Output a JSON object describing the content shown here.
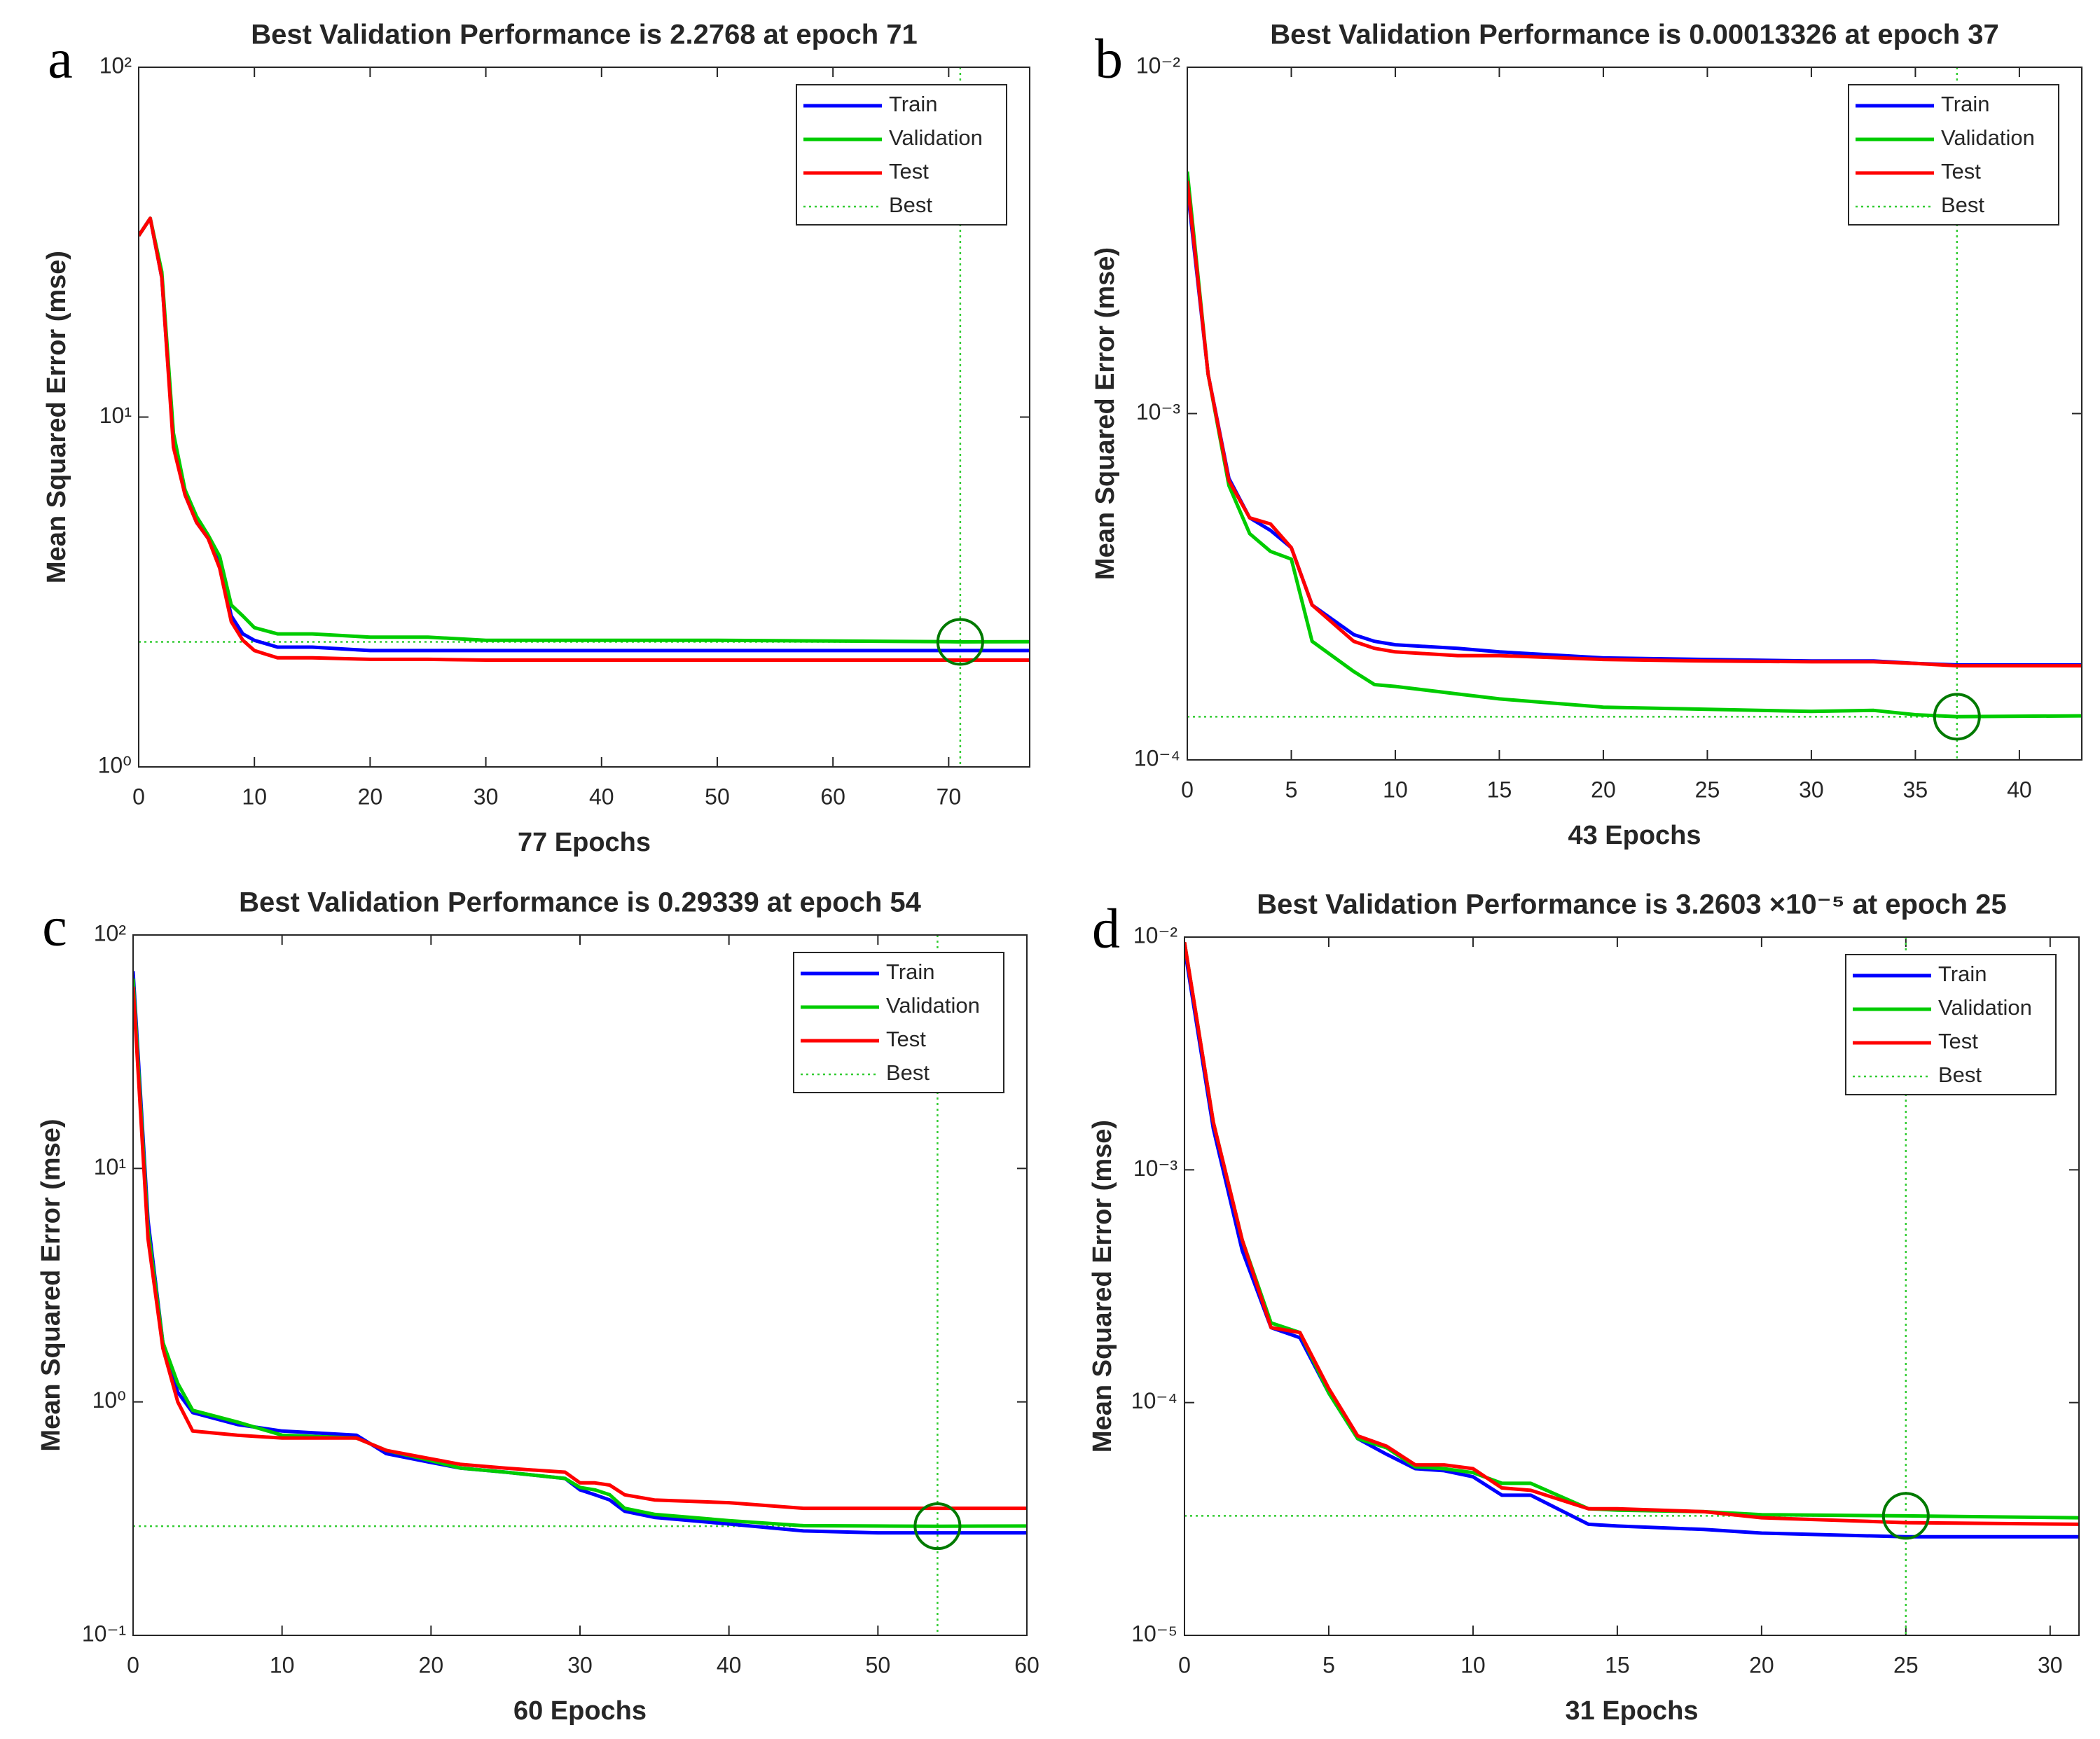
{
  "chart_data": [
    {
      "type": "line",
      "panel": "a",
      "title": "Best Validation Performance is 2.2768 at epoch 71",
      "xlabel": "77 Epochs",
      "ylabel": "Mean Squared Error  (mse)",
      "yscale": "log",
      "xlim": [
        0,
        77
      ],
      "xticks": [
        0,
        10,
        20,
        30,
        40,
        50,
        60,
        70
      ],
      "ylim": [
        1,
        100
      ],
      "yticks": [
        {
          "value": 1,
          "label": "10⁰"
        },
        {
          "value": 10,
          "label": "10¹"
        },
        {
          "value": 100,
          "label": "10²"
        }
      ],
      "x": [
        0,
        1,
        2,
        3,
        4,
        5,
        6,
        7,
        8,
        9,
        10,
        12,
        15,
        20,
        25,
        30,
        40,
        50,
        60,
        70,
        71,
        77
      ],
      "series": [
        {
          "name": "Train",
          "color": "#0000ff",
          "values": [
            33,
            37,
            25,
            8.5,
            6,
            5,
            4.5,
            3.8,
            2.7,
            2.4,
            2.3,
            2.2,
            2.2,
            2.15,
            2.15,
            2.15,
            2.15,
            2.15,
            2.15,
            2.15,
            2.15,
            2.15
          ]
        },
        {
          "name": "Validation",
          "color": "#00cc00",
          "values": [
            33,
            37,
            26,
            9,
            6.2,
            5.2,
            4.6,
            4.0,
            2.9,
            2.7,
            2.5,
            2.4,
            2.4,
            2.35,
            2.35,
            2.3,
            2.3,
            2.3,
            2.29,
            2.28,
            2.2768,
            2.28
          ]
        },
        {
          "name": "Test",
          "color": "#ff0000",
          "values": [
            33,
            37,
            25,
            8.2,
            6,
            5,
            4.5,
            3.7,
            2.6,
            2.3,
            2.15,
            2.05,
            2.05,
            2.03,
            2.03,
            2.02,
            2.02,
            2.02,
            2.02,
            2.02,
            2.02,
            2.02
          ]
        }
      ],
      "best": {
        "name": "Best",
        "color": "#33cc33",
        "x": 71,
        "y": 2.2768
      }
    },
    {
      "type": "line",
      "panel": "b",
      "title": "Best Validation Performance is 0.00013326 at epoch 37",
      "xlabel": "43 Epochs",
      "ylabel": "Mean Squared Error  (mse)",
      "yscale": "log",
      "xlim": [
        0,
        43
      ],
      "xticks": [
        0,
        5,
        10,
        15,
        20,
        25,
        30,
        35,
        40
      ],
      "ylim": [
        0.0001,
        0.01
      ],
      "yticks": [
        {
          "value": 0.0001,
          "label": "10⁻⁴"
        },
        {
          "value": 0.001,
          "label": "10⁻³"
        },
        {
          "value": 0.01,
          "label": "10⁻²"
        }
      ],
      "x": [
        0,
        1,
        2,
        3,
        4,
        5,
        6,
        8,
        9,
        10,
        13,
        15,
        20,
        25,
        30,
        33,
        35,
        37,
        43
      ],
      "series": [
        {
          "name": "Train",
          "color": "#0000ff",
          "values": [
            0.0045,
            0.0013,
            0.00065,
            0.0005,
            0.00046,
            0.00041,
            0.00028,
            0.00023,
            0.00022,
            0.000215,
            0.00021,
            0.000205,
            0.000197,
            0.000195,
            0.000193,
            0.000193,
            0.00019,
            0.000188,
            0.000188
          ]
        },
        {
          "name": "Validation",
          "color": "#00cc00",
          "values": [
            0.005,
            0.0013,
            0.00062,
            0.00045,
            0.0004,
            0.00038,
            0.00022,
            0.00018,
            0.000165,
            0.000163,
            0.000155,
            0.00015,
            0.000142,
            0.00014,
            0.000138,
            0.000139,
            0.000135,
            0.00013326,
            0.000134
          ]
        },
        {
          "name": "Test",
          "color": "#ff0000",
          "values": [
            0.0047,
            0.0013,
            0.00064,
            0.0005,
            0.00048,
            0.00041,
            0.00028,
            0.00022,
            0.00021,
            0.000205,
            0.0002,
            0.0002,
            0.000195,
            0.000193,
            0.000192,
            0.000192,
            0.00019,
            0.000187,
            0.000187
          ]
        }
      ],
      "best": {
        "name": "Best",
        "color": "#33cc33",
        "x": 37,
        "y": 0.00013326
      }
    },
    {
      "type": "line",
      "panel": "c",
      "title": "Best Validation Performance is 0.29339 at epoch 54",
      "xlabel": "60 Epochs",
      "ylabel": "Mean Squared Error  (mse)",
      "yscale": "log",
      "xlim": [
        0,
        60
      ],
      "xticks": [
        0,
        10,
        20,
        30,
        40,
        50,
        60
      ],
      "ylim": [
        0.1,
        100
      ],
      "yticks": [
        {
          "value": 0.1,
          "label": "10⁻¹"
        },
        {
          "value": 1,
          "label": "10⁰"
        },
        {
          "value": 10,
          "label": "10¹"
        },
        {
          "value": 100,
          "label": "10²"
        }
      ],
      "x": [
        0,
        1,
        2,
        3,
        4,
        7,
        10,
        15,
        17,
        20,
        22,
        25,
        29,
        30,
        31,
        32,
        33,
        35,
        40,
        45,
        50,
        54,
        60
      ],
      "series": [
        {
          "name": "Train",
          "color": "#0000ff",
          "values": [
            70,
            6,
            1.8,
            1.1,
            0.9,
            0.8,
            0.75,
            0.72,
            0.6,
            0.55,
            0.52,
            0.5,
            0.47,
            0.42,
            0.4,
            0.38,
            0.34,
            0.32,
            0.3,
            0.28,
            0.275,
            0.275,
            0.275
          ]
        },
        {
          "name": "Validation",
          "color": "#00cc00",
          "values": [
            65,
            5.5,
            1.8,
            1.2,
            0.92,
            0.82,
            0.72,
            0.7,
            0.62,
            0.56,
            0.52,
            0.5,
            0.47,
            0.43,
            0.42,
            0.4,
            0.35,
            0.33,
            0.31,
            0.295,
            0.294,
            0.29339,
            0.294
          ]
        },
        {
          "name": "Test",
          "color": "#ff0000",
          "values": [
            60,
            5,
            1.7,
            1.0,
            0.75,
            0.72,
            0.7,
            0.7,
            0.62,
            0.57,
            0.54,
            0.52,
            0.5,
            0.45,
            0.45,
            0.44,
            0.4,
            0.38,
            0.37,
            0.35,
            0.35,
            0.35,
            0.35
          ]
        }
      ],
      "best": {
        "name": "Best",
        "color": "#33cc33",
        "x": 54,
        "y": 0.29339
      }
    },
    {
      "type": "line",
      "panel": "d",
      "title": "Best Validation Performance is 3.2603 ×10⁻⁵ at epoch 25",
      "xlabel": "31 Epochs",
      "ylabel": "Mean Squared Error  (mse)",
      "yscale": "log",
      "xlim": [
        0,
        31
      ],
      "xticks": [
        0,
        5,
        10,
        15,
        20,
        25,
        30
      ],
      "ylim": [
        1e-05,
        0.01
      ],
      "yticks": [
        {
          "value": 1e-05,
          "label": "10⁻⁵"
        },
        {
          "value": 0.0001,
          "label": "10⁻⁴"
        },
        {
          "value": 0.001,
          "label": "10⁻³"
        },
        {
          "value": 0.01,
          "label": "10⁻²"
        }
      ],
      "x": [
        0,
        1,
        2,
        3,
        4,
        5,
        6,
        7,
        8,
        9,
        10,
        11,
        12,
        14,
        15,
        18,
        20,
        25,
        31
      ],
      "series": [
        {
          "name": "Train",
          "color": "#0000ff",
          "values": [
            0.009,
            0.0015,
            0.00045,
            0.00021,
            0.00019,
            0.00011,
            7e-05,
            6e-05,
            5.2e-05,
            5.1e-05,
            4.8e-05,
            4e-05,
            4e-05,
            3e-05,
            2.95e-05,
            2.85e-05,
            2.75e-05,
            2.65e-05,
            2.65e-05
          ]
        },
        {
          "name": "Validation",
          "color": "#00cc00",
          "values": [
            0.0095,
            0.0016,
            0.0005,
            0.00022,
            0.0002,
            0.00011,
            7e-05,
            6.4e-05,
            5.3e-05,
            5.2e-05,
            5e-05,
            4.5e-05,
            4.5e-05,
            3.5e-05,
            3.45e-05,
            3.4e-05,
            3.3e-05,
            3.2603e-05,
            3.2e-05
          ]
        },
        {
          "name": "Test",
          "color": "#ff0000",
          "values": [
            0.0095,
            0.0016,
            0.0005,
            0.00021,
            0.0002,
            0.000115,
            7.2e-05,
            6.5e-05,
            5.4e-05,
            5.4e-05,
            5.2e-05,
            4.3e-05,
            4.2e-05,
            3.5e-05,
            3.5e-05,
            3.4e-05,
            3.2e-05,
            3.05e-05,
            3e-05
          ]
        }
      ],
      "best": {
        "name": "Best",
        "color": "#33cc33",
        "x": 25,
        "y": 3.2603e-05
      }
    }
  ]
}
